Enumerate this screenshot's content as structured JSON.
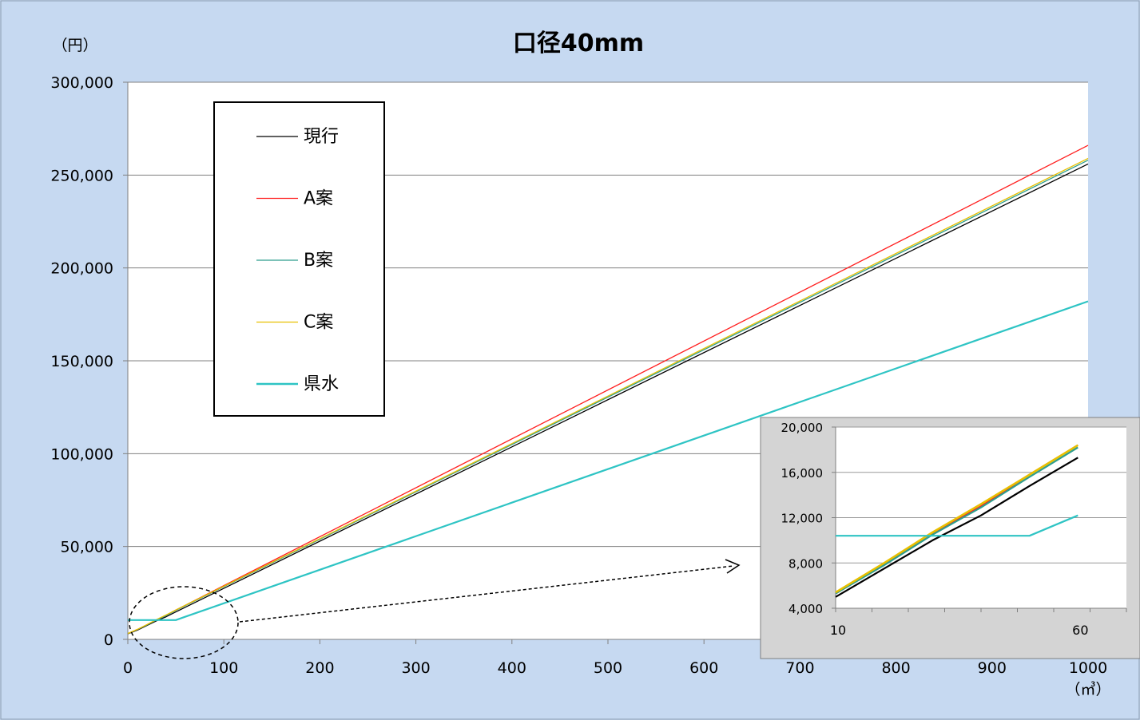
{
  "chart_data": [
    {
      "type": "line",
      "title": "口径40mm",
      "ylabel": "（円）",
      "xlabel": "（㎥）",
      "x": [
        0,
        10,
        20,
        30,
        40,
        50,
        60,
        1000
      ],
      "xlim": [
        0,
        1000
      ],
      "ylim": [
        0,
        300000
      ],
      "x_ticks": [
        0,
        100,
        200,
        300,
        400,
        500,
        600,
        700,
        800,
        900,
        1000
      ],
      "y_ticks": [
        0,
        50000,
        100000,
        150000,
        200000,
        250000,
        300000
      ],
      "x_tick_labels": [
        "0",
        "100",
        "200",
        "300",
        "400",
        "500",
        "600",
        "700",
        "800",
        "900",
        "1000"
      ],
      "y_tick_labels": [
        "0",
        "50,000",
        "100,000",
        "150,000",
        "200,000",
        "250,000",
        "300,000"
      ],
      "grid": "horizontal",
      "legend_position": "top-left",
      "series": [
        {
          "name": "現行",
          "color": "#000000",
          "values": [
            3000,
            5000,
            7500,
            10000,
            12200,
            14800,
            17300,
            256000
          ]
        },
        {
          "name": "A案",
          "color": "#ff2020",
          "values": [
            3100,
            5300,
            7900,
            10600,
            13000,
            15800,
            18400,
            266000
          ]
        },
        {
          "name": "B案",
          "color": "#2e9e8e",
          "values": [
            3100,
            5300,
            7800,
            10500,
            12900,
            15600,
            18200,
            258000
          ]
        },
        {
          "name": "C案",
          "color": "#e8c000",
          "values": [
            3200,
            5400,
            8000,
            10700,
            13200,
            15800,
            18400,
            259000
          ]
        },
        {
          "name": "県水",
          "color": "#2ec4c4",
          "values": [
            10400,
            10400,
            10400,
            10400,
            10400,
            10400,
            12200,
            182000
          ]
        }
      ]
    },
    {
      "type": "line",
      "title": "",
      "x": [
        10,
        20,
        30,
        40,
        50,
        60
      ],
      "xlim": [
        10,
        70
      ],
      "ylim": [
        4000,
        20000
      ],
      "x_tick_labels_shown": [
        "10",
        "60"
      ],
      "y_tick_labels": [
        "4,000",
        "8,000",
        "12,000",
        "16,000",
        "20,000"
      ],
      "y_ticks": [
        4000,
        8000,
        12000,
        16000,
        20000
      ],
      "grid": "horizontal",
      "series": [
        {
          "name": "現行",
          "color": "#000000",
          "values": [
            5000,
            7500,
            10000,
            12200,
            14800,
            17300
          ]
        },
        {
          "name": "A案",
          "color": "#ff2020",
          "values": [
            5300,
            7900,
            10600,
            13000,
            15800,
            18400
          ]
        },
        {
          "name": "B案",
          "color": "#2e9e8e",
          "values": [
            5300,
            7800,
            10500,
            12900,
            15600,
            18200
          ]
        },
        {
          "name": "C案",
          "color": "#e8c000",
          "values": [
            5400,
            8000,
            10700,
            13200,
            15800,
            18400
          ]
        },
        {
          "name": "県水",
          "color": "#2ec4c4",
          "values": [
            10400,
            10400,
            10400,
            10400,
            10400,
            12200
          ]
        }
      ]
    }
  ],
  "colors": {
    "background": "#c6d9f1",
    "plot": "#ffffff",
    "inset_background": "#d4d4d4"
  }
}
